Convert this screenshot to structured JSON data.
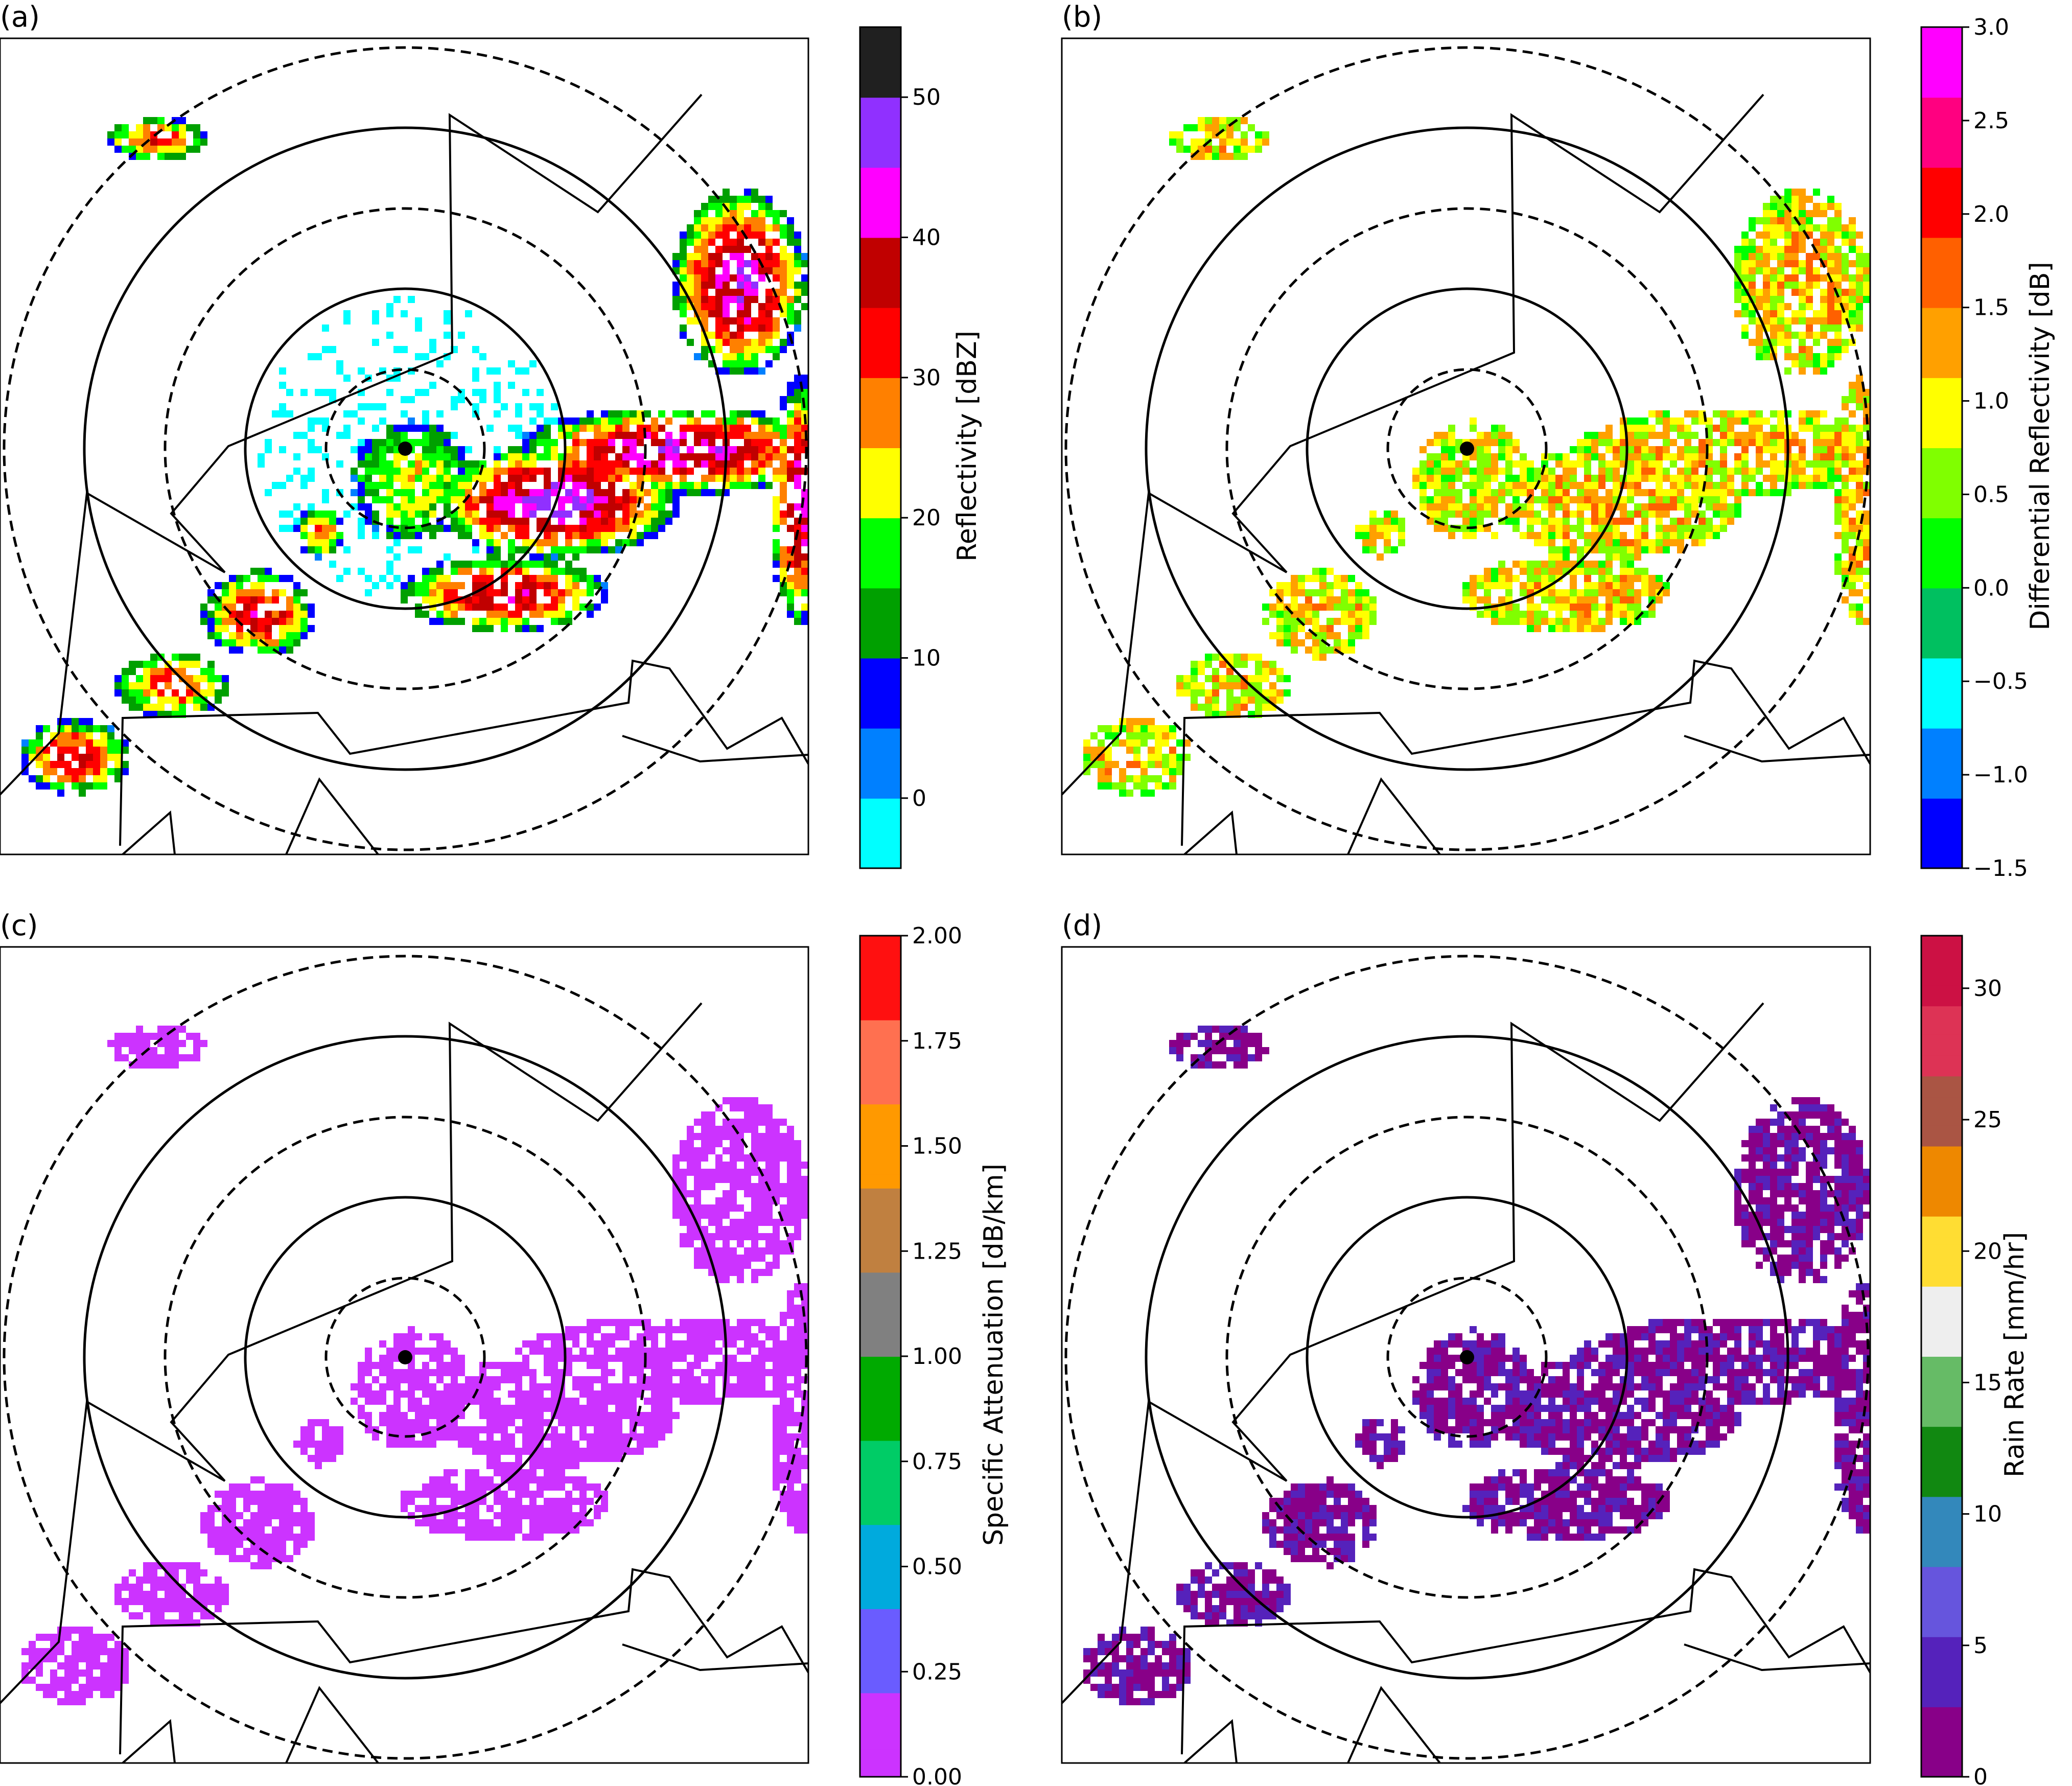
{
  "panels": [
    {
      "panel_label": "(a)",
      "colorbar": {
        "label": "Reflectivity [dBZ]",
        "vmin": -5,
        "vmax": 55,
        "ticks": [
          0,
          10,
          20,
          30,
          40,
          50
        ],
        "tick_labels": [
          "0",
          "10",
          "20",
          "30",
          "40",
          "50"
        ],
        "colormap": [
          "#00ffff",
          "#0080ff",
          "#0000ff",
          "#00a000",
          "#00ff00",
          "#ffff00",
          "#ff8000",
          "#ff0000",
          "#c00000",
          "#ff00ff",
          "#9030ff",
          "#202020"
        ]
      }
    },
    {
      "panel_label": "(b)",
      "colorbar": {
        "label": "Differential Reflectivity [dB]",
        "vmin": -1.5,
        "vmax": 3.0,
        "ticks": [
          -1.5,
          -1.0,
          -0.5,
          0.0,
          0.5,
          1.0,
          1.5,
          2.0,
          2.5,
          3.0
        ],
        "tick_labels": [
          "−1.5",
          "−1.0",
          "−0.5",
          "0.0",
          "0.5",
          "1.0",
          "1.5",
          "2.0",
          "2.5",
          "3.0"
        ],
        "colormap": [
          "#0000ff",
          "#0080ff",
          "#00ffff",
          "#00c060",
          "#00ff00",
          "#80ff00",
          "#ffff00",
          "#ffa000",
          "#ff6000",
          "#ff0000",
          "#ff0080",
          "#ff00ff"
        ]
      }
    },
    {
      "panel_label": "(c)",
      "colorbar": {
        "label": "Specific Attenuation [dB/km]",
        "vmin": 0.0,
        "vmax": 2.0,
        "ticks": [
          0.0,
          0.25,
          0.5,
          0.75,
          1.0,
          1.25,
          1.5,
          1.75,
          2.0
        ],
        "tick_labels": [
          "0.00",
          "0.25",
          "0.50",
          "0.75",
          "1.00",
          "1.25",
          "1.50",
          "1.75",
          "2.00"
        ],
        "colormap": [
          "#cc33ff",
          "#6a5cff",
          "#00aadd",
          "#00cc66",
          "#00aa00",
          "#808080",
          "#c08040",
          "#ff9900",
          "#ff7050",
          "#ff1010"
        ]
      }
    },
    {
      "panel_label": "(d)",
      "colorbar": {
        "label": "Rain Rate [mm/hr]",
        "vmin": 0,
        "vmax": 32,
        "ticks": [
          0,
          5,
          10,
          15,
          20,
          25,
          30
        ],
        "tick_labels": [
          "0",
          "5",
          "10",
          "15",
          "20",
          "25",
          "30"
        ],
        "colormap": [
          "#880088",
          "#5522bb",
          "#6655dd",
          "#3388bb",
          "#118811",
          "#66bb66",
          "#eeeeee",
          "#ffdd33",
          "#ee8800",
          "#aa5544",
          "#dd3355",
          "#cc1144"
        ]
      }
    }
  ],
  "chart_data": {
    "type": "heatmap",
    "description_fields": "radar PPI panels with range rings, colorbars",
    "panels": [
      "(a)",
      "(b)",
      "(c)",
      "(d)"
    ],
    "colorbar_labels": [
      "Reflectivity [dBZ]",
      "Differential Reflectivity [dB]",
      "Specific Attenuation [dB/km]",
      "Rain Rate [mm/hr]"
    ],
    "colorbar_ranges": [
      [
        -5,
        55
      ],
      [
        -1.5,
        3.0
      ],
      [
        0.0,
        2.0
      ],
      [
        0,
        32
      ]
    ]
  }
}
